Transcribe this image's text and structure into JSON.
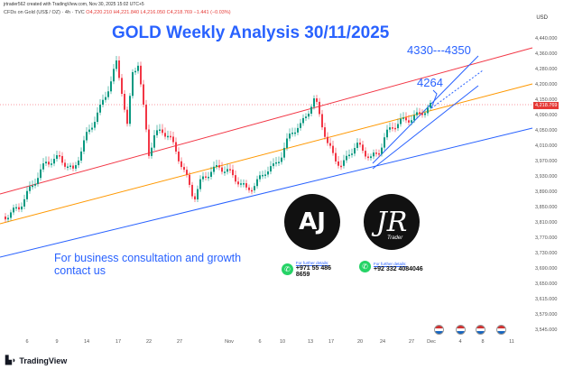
{
  "header": {
    "created_by": "jrtrader562 created with TradingView.com, Nov 30, 2025 15:02 UTC+5",
    "symbol": "CFDs on Gold (US$ / OZ) · 4h · TVC",
    "ohlc": "O4,220.210  H4,221.840  L4,216.050  C4,218.769  −1.441 (−0.03%)",
    "currency": "USD"
  },
  "annotations": {
    "title": "GOLD Weekly Analysis 30/11/2025",
    "target_high": "4330---4350",
    "target_low": "4264",
    "consult_line1": "For business consultation and growth",
    "consult_line2": "contact us"
  },
  "logos": {
    "aj_text": "AJ",
    "jr_text": "JR",
    "jr_sub": "Trader",
    "contact_header": "For further details:",
    "aj_phone": "+971 55 486 8659",
    "jr_phone": "+92 332 4084046"
  },
  "price_tag": "4,218.769",
  "footer": {
    "brand": "TradingView"
  },
  "chart_data": {
    "type": "candlestick",
    "price_axis": [
      "4,440.000",
      "4,360.000",
      "4,280.000",
      "4,200.000",
      "4,150.000",
      "4,090.000",
      "4,050.000",
      "4,010.000",
      "3,970.000",
      "3,930.000",
      "3,890.000",
      "3,850.000",
      "3,810.000",
      "3,770.000",
      "3,730.000",
      "3,690.000",
      "3,650.000",
      "3,615.000",
      "3,579.000",
      "3,545.000"
    ],
    "time_axis": [
      "6",
      "9",
      "14",
      "17",
      "22",
      "27",
      "Nov",
      "6",
      "10",
      "13",
      "17",
      "20",
      "24",
      "27",
      "Dec",
      "4",
      "8",
      "11"
    ],
    "colors": {
      "up": "#089981",
      "down": "#f23645",
      "red_channel": "#f23645",
      "orange_channel": "#ff9800",
      "blue_channel": "#2962ff"
    }
  }
}
